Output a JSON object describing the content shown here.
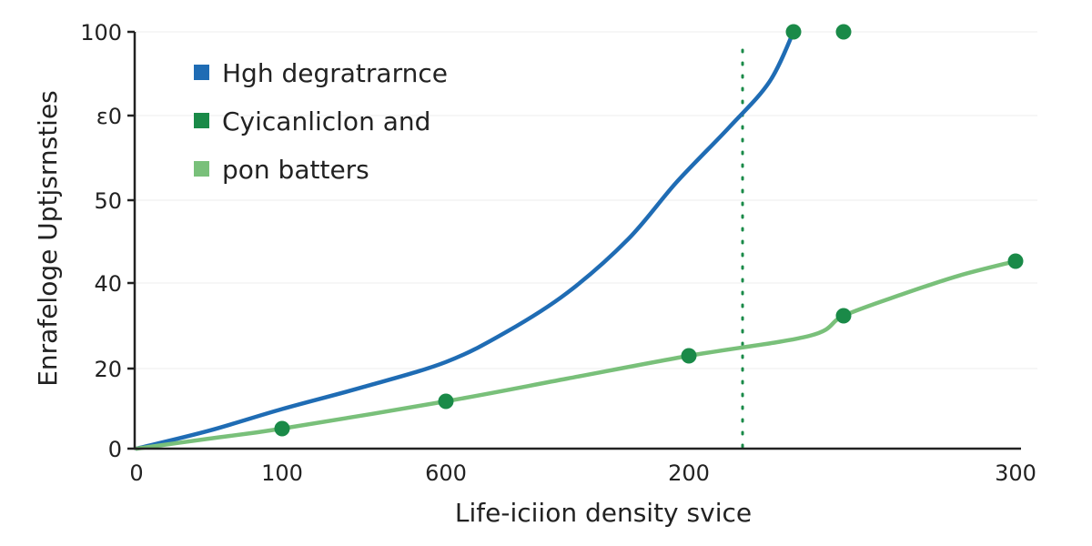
{
  "chart_data": {
    "type": "line",
    "title": "",
    "xlabel": "Life-iciion density svice",
    "ylabel": "Enrafeloge Uptjsrnsties",
    "x_tick_labels": [
      "0",
      "100",
      "600",
      "200",
      "300"
    ],
    "y_tick_labels": [
      "0",
      "20",
      "40",
      "50",
      "ε0",
      "100"
    ],
    "grid": true,
    "legend": {
      "position": "top-left",
      "entries": [
        {
          "label": "Hgh degratrarnce",
          "color": "#1f6cb4"
        },
        {
          "label": "Cyicanliclon and",
          "color": "#1a8a48"
        },
        {
          "label": "pon batters",
          "color": "#79c07a"
        }
      ]
    },
    "series": [
      {
        "label_ref": 0,
        "color": "#1f6cb4",
        "style": "line",
        "points": [
          [
            0,
            0
          ],
          [
            0.5,
            4.5
          ],
          [
            1,
            9.3
          ],
          [
            1.5,
            14.5
          ],
          [
            2,
            20.5
          ],
          [
            2.5,
            28
          ],
          [
            3,
            37.5
          ],
          [
            3.5,
            50
          ],
          [
            3.9,
            63
          ],
          [
            4.2,
            76
          ],
          [
            4.4,
            88
          ],
          [
            4.52,
            100
          ]
        ]
      },
      {
        "label_ref": 2,
        "color": "#79c07a",
        "style": "line",
        "points": [
          [
            0,
            0
          ],
          [
            0.5,
            2.5
          ],
          [
            1,
            5
          ],
          [
            2,
            11
          ],
          [
            3,
            16.5
          ],
          [
            4,
            22
          ],
          [
            5,
            27
          ],
          [
            6,
            32
          ],
          [
            7,
            37
          ],
          [
            8,
            41.5
          ],
          [
            9,
            45
          ]
        ]
      },
      {
        "label_ref": 1,
        "color": "#1a8a48",
        "style": "markers",
        "points": [
          [
            1,
            5
          ],
          [
            2,
            11
          ],
          [
            4,
            22
          ],
          [
            4.52,
            100
          ],
          [
            6,
            32
          ],
          [
            6,
            100
          ],
          [
            9,
            45
          ]
        ]
      }
    ],
    "reference_line": {
      "x": 6,
      "style": "dotted",
      "color": "#1a8a48"
    }
  }
}
